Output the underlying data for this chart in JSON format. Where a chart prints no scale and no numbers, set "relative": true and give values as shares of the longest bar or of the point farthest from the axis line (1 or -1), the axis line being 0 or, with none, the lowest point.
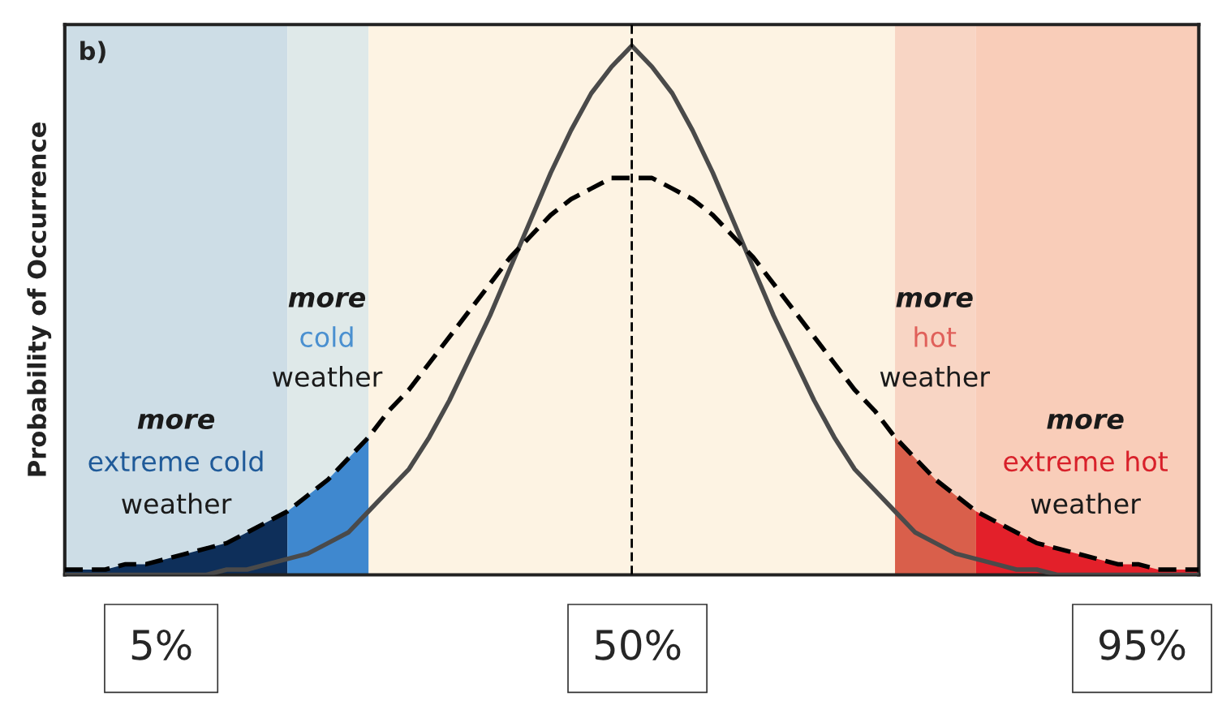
{
  "chart_data": {
    "type": "line",
    "relative": true,
    "ylabel": "Probability of Occurrence",
    "grid": false,
    "legend": false,
    "categories": [
      null,
      null,
      null,
      null,
      null,
      null,
      null,
      null,
      null,
      null,
      null,
      null,
      null,
      null,
      null,
      null,
      null,
      null,
      null,
      null,
      null,
      null,
      null,
      null,
      null,
      null,
      null,
      null,
      null,
      null,
      null,
      null,
      null,
      null,
      null,
      null,
      null,
      null,
      null,
      null,
      null,
      null,
      null,
      null,
      null,
      null,
      null,
      null,
      null,
      null,
      null,
      null,
      null,
      null,
      null,
      null,
      null
    ],
    "series": [
      {
        "color": "#4a4a4a",
        "line_style": "solid",
        "values": [
          0.0,
          0.0,
          0.0,
          0.0,
          0.0,
          0.0,
          0.0,
          0.0,
          0.01,
          0.01,
          0.02,
          0.03,
          0.04,
          0.06,
          0.08,
          0.12,
          0.16,
          0.2,
          0.26,
          0.33,
          0.41,
          0.49,
          0.58,
          0.67,
          0.76,
          0.84,
          0.91,
          0.96,
          1.0,
          0.96,
          0.91,
          0.84,
          0.76,
          0.67,
          0.58,
          0.49,
          0.41,
          0.33,
          0.26,
          0.2,
          0.16,
          0.12,
          0.08,
          0.06,
          0.04,
          0.03,
          0.02,
          0.01,
          0.01,
          0.0,
          0.0,
          0.0,
          0.0,
          0.0,
          0.0,
          0.0,
          0.0
        ]
      },
      {
        "color": "#000000",
        "line_style": "dashed",
        "values": [
          0.01,
          0.01,
          0.01,
          0.02,
          0.02,
          0.03,
          0.04,
          0.05,
          0.06,
          0.08,
          0.1,
          0.12,
          0.15,
          0.18,
          0.22,
          0.26,
          0.31,
          0.35,
          0.4,
          0.45,
          0.5,
          0.55,
          0.6,
          0.64,
          0.68,
          0.71,
          0.73,
          0.75,
          0.75,
          0.75,
          0.73,
          0.71,
          0.68,
          0.64,
          0.6,
          0.55,
          0.5,
          0.45,
          0.4,
          0.35,
          0.31,
          0.26,
          0.22,
          0.18,
          0.15,
          0.12,
          0.1,
          0.08,
          0.06,
          0.05,
          0.04,
          0.03,
          0.02,
          0.02,
          0.01,
          0.01,
          0.01
        ]
      },
      {
        "type": "area",
        "color": "#0e2f5a",
        "values": [
          0.01,
          0.01,
          0.01,
          0.02,
          0.02,
          0.03,
          0.04,
          0.05,
          0.06,
          0.08,
          0.1,
          0.12,
          null,
          null,
          null,
          null,
          null,
          null,
          null,
          null,
          null,
          null,
          null,
          null,
          null,
          null,
          null,
          null,
          null,
          null,
          null,
          null,
          null,
          null,
          null,
          null,
          null,
          null,
          null,
          null,
          null,
          null,
          null,
          null,
          null,
          null,
          null,
          null,
          null,
          null,
          null,
          null,
          null,
          null,
          null,
          null,
          null
        ]
      },
      {
        "type": "area",
        "color": "#3f88cf",
        "values": [
          null,
          null,
          null,
          null,
          null,
          null,
          null,
          null,
          null,
          null,
          null,
          0.12,
          0.15,
          0.18,
          0.22,
          0.26,
          null,
          null,
          null,
          null,
          null,
          null,
          null,
          null,
          null,
          null,
          null,
          null,
          null,
          null,
          null,
          null,
          null,
          null,
          null,
          null,
          null,
          null,
          null,
          null,
          null,
          null,
          null,
          null,
          null,
          null,
          null,
          null,
          null,
          null,
          null,
          null,
          null,
          null,
          null,
          null,
          null
        ]
      },
      {
        "type": "area",
        "color": "#d95f4b",
        "values": [
          null,
          null,
          null,
          null,
          null,
          null,
          null,
          null,
          null,
          null,
          null,
          null,
          null,
          null,
          null,
          null,
          null,
          null,
          null,
          null,
          null,
          null,
          null,
          null,
          null,
          null,
          null,
          null,
          null,
          null,
          null,
          null,
          null,
          null,
          null,
          null,
          null,
          null,
          null,
          null,
          null,
          0.26,
          0.22,
          0.18,
          0.15,
          0.12,
          null,
          null,
          null,
          null,
          null,
          null,
          null,
          null,
          null,
          null,
          null
        ]
      },
      {
        "type": "area",
        "color": "#e3202a",
        "values": [
          null,
          null,
          null,
          null,
          null,
          null,
          null,
          null,
          null,
          null,
          null,
          null,
          null,
          null,
          null,
          null,
          null,
          null,
          null,
          null,
          null,
          null,
          null,
          null,
          null,
          null,
          null,
          null,
          null,
          null,
          null,
          null,
          null,
          null,
          null,
          null,
          null,
          null,
          null,
          null,
          null,
          null,
          null,
          null,
          null,
          0.12,
          0.1,
          0.08,
          0.06,
          0.05,
          0.04,
          0.03,
          0.02,
          0.02,
          0.01,
          0.01,
          0.01
        ]
      }
    ],
    "annotations": [
      "b)",
      "more",
      "extreme cold",
      "weather",
      "more",
      "cold",
      "weather",
      "more",
      "hot",
      "weather",
      "more",
      "extreme hot",
      "weather",
      "5%",
      "50%",
      "95%"
    ]
  }
}
